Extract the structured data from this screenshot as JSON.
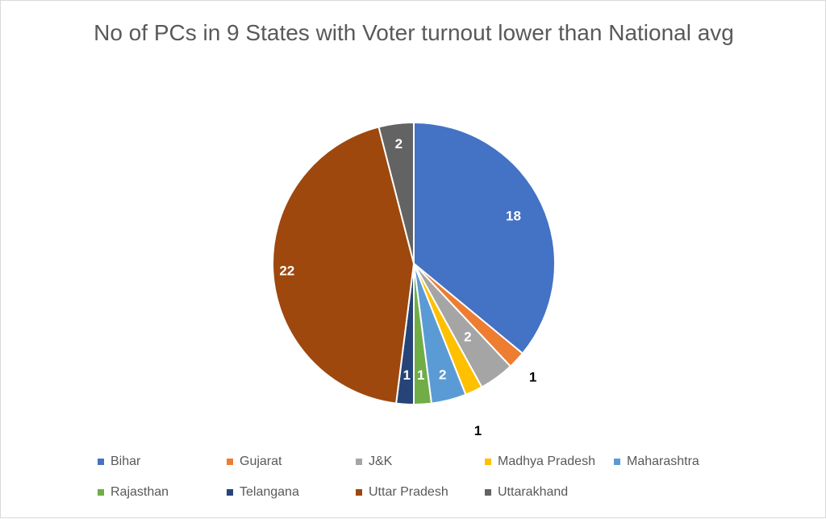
{
  "chart_data": {
    "type": "pie",
    "title": "No of PCs in 9 States with Voter turnout lower than National avg",
    "categories": [
      "Bihar",
      "Gujarat",
      "J&K",
      "Madhya Pradesh",
      "Maharashtra",
      "Rajasthan",
      "Telangana",
      "Uttar Pradesh",
      "Uttarakhand"
    ],
    "values": [
      18,
      1,
      2,
      1,
      2,
      1,
      1,
      22,
      2
    ],
    "colors": [
      "#4472C4",
      "#ED7D31",
      "#A5A5A5",
      "#FFC000",
      "#5B9BD5",
      "#70AD47",
      "#264478",
      "#9E480E",
      "#636363"
    ],
    "data_labels": [
      "18",
      "1",
      "2",
      "1",
      "2",
      "1",
      "1",
      "22",
      "2"
    ],
    "legend_position": "bottom",
    "start_angle": "top",
    "direction": "clockwise"
  }
}
